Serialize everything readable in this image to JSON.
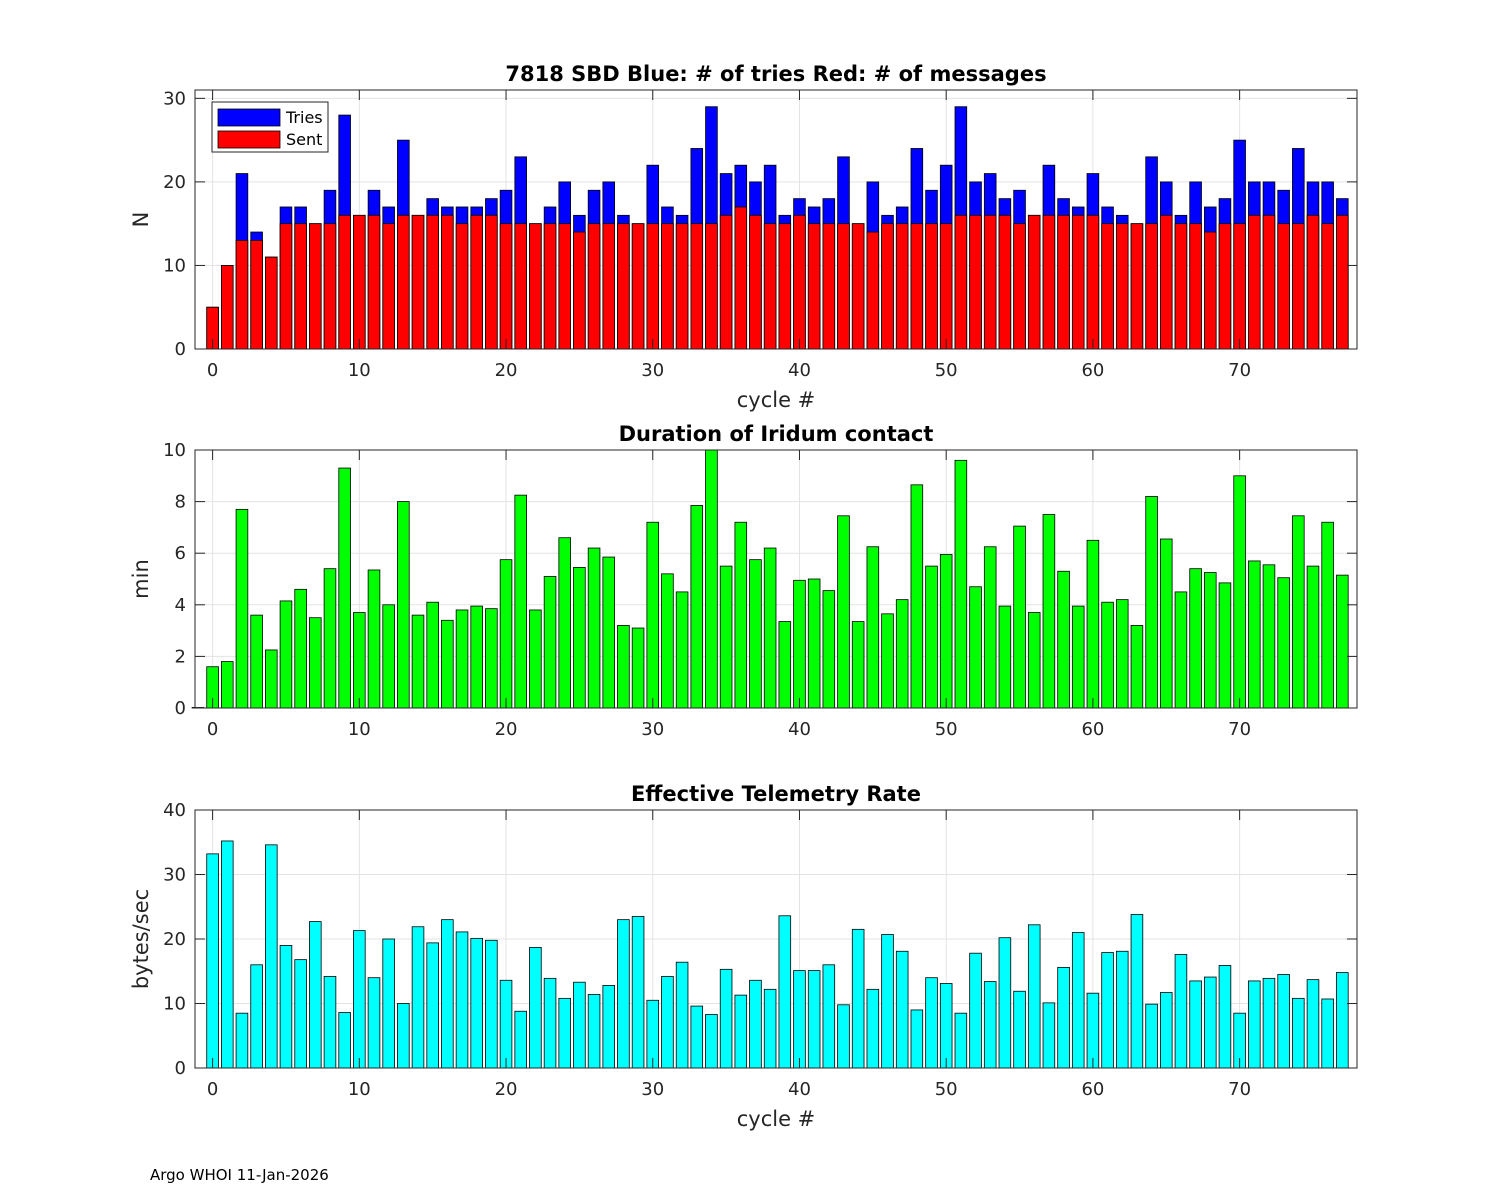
{
  "chart_data": [
    {
      "id": "sbd",
      "type": "bar",
      "title": "7818 SBD  Blue: # of tries   Red: # of messages",
      "xlabel": "cycle #",
      "ylabel": "N",
      "xlim": [
        -1.2,
        78
      ],
      "ylim": [
        0,
        31
      ],
      "xticks": [
        0,
        10,
        20,
        30,
        40,
        50,
        60,
        70
      ],
      "yticks": [
        0,
        10,
        20,
        30
      ],
      "grid": true,
      "legend_position": "top-left",
      "series": [
        {
          "name": "Tries",
          "color": "#0000ff",
          "x": [
            0,
            1,
            2,
            3,
            4,
            5,
            6,
            7,
            8,
            9,
            10,
            11,
            12,
            13,
            14,
            15,
            16,
            17,
            18,
            19,
            20,
            21,
            22,
            23,
            24,
            25,
            26,
            27,
            28,
            29,
            30,
            31,
            32,
            33,
            34,
            35,
            36,
            37,
            38,
            39,
            40,
            41,
            42,
            43,
            44,
            45,
            46,
            47,
            48,
            49,
            50,
            51,
            52,
            53,
            54,
            55,
            56,
            57,
            58,
            59,
            60,
            61,
            62,
            63,
            64,
            65,
            66,
            67,
            68,
            69,
            70,
            71,
            72,
            73,
            74,
            75,
            76,
            77
          ],
          "values": [
            5,
            10,
            21,
            14,
            11,
            17,
            17,
            15,
            19,
            28,
            16,
            19,
            17,
            25,
            16,
            18,
            17,
            17,
            17,
            18,
            19,
            23,
            15,
            17,
            20,
            16,
            19,
            20,
            16,
            15,
            22,
            17,
            16,
            24,
            29,
            21,
            22,
            20,
            22,
            16,
            18,
            17,
            18,
            23,
            15,
            20,
            16,
            17,
            24,
            19,
            22,
            29,
            20,
            21,
            18,
            19,
            16,
            22,
            18,
            17,
            21,
            17,
            16,
            15,
            23,
            20,
            16,
            20,
            17,
            18,
            25,
            20,
            20,
            19,
            24,
            20,
            20,
            18
          ]
        },
        {
          "name": "Sent",
          "color": "#ff0000",
          "x": [
            0,
            1,
            2,
            3,
            4,
            5,
            6,
            7,
            8,
            9,
            10,
            11,
            12,
            13,
            14,
            15,
            16,
            17,
            18,
            19,
            20,
            21,
            22,
            23,
            24,
            25,
            26,
            27,
            28,
            29,
            30,
            31,
            32,
            33,
            34,
            35,
            36,
            37,
            38,
            39,
            40,
            41,
            42,
            43,
            44,
            45,
            46,
            47,
            48,
            49,
            50,
            51,
            52,
            53,
            54,
            55,
            56,
            57,
            58,
            59,
            60,
            61,
            62,
            63,
            64,
            65,
            66,
            67,
            68,
            69,
            70,
            71,
            72,
            73,
            74,
            75,
            76,
            77
          ],
          "values": [
            5,
            10,
            13,
            13,
            11,
            15,
            15,
            15,
            15,
            16,
            16,
            16,
            15,
            16,
            16,
            16,
            16,
            15,
            16,
            16,
            15,
            15,
            15,
            15,
            15,
            14,
            15,
            15,
            15,
            15,
            15,
            15,
            15,
            15,
            15,
            16,
            17,
            16,
            15,
            15,
            16,
            15,
            15,
            15,
            15,
            14,
            15,
            15,
            15,
            15,
            15,
            16,
            16,
            16,
            16,
            15,
            16,
            16,
            16,
            16,
            16,
            15,
            15,
            15,
            15,
            16,
            15,
            15,
            14,
            15,
            15,
            16,
            16,
            15,
            15,
            16,
            15,
            16
          ]
        }
      ]
    },
    {
      "id": "duration",
      "type": "bar",
      "title": "Duration of Iridum contact",
      "xlabel": "",
      "ylabel": "min",
      "xlim": [
        -1.2,
        78
      ],
      "ylim": [
        0,
        10
      ],
      "xticks": [
        0,
        10,
        20,
        30,
        40,
        50,
        60,
        70
      ],
      "yticks": [
        0,
        2,
        4,
        6,
        8,
        10
      ],
      "grid": true,
      "series": [
        {
          "name": "Duration",
          "color": "#00ff00",
          "x": [
            -1,
            0,
            1,
            2,
            3,
            4,
            5,
            6,
            7,
            8,
            9,
            10,
            11,
            12,
            13,
            14,
            15,
            16,
            17,
            18,
            19,
            20,
            21,
            22,
            23,
            24,
            25,
            26,
            27,
            28,
            29,
            30,
            31,
            32,
            33,
            34,
            35,
            36,
            37,
            38,
            39,
            40,
            41,
            42,
            43,
            44,
            45,
            46,
            47,
            48,
            49,
            50,
            51,
            52,
            53,
            54,
            55,
            56,
            57,
            58,
            59,
            60,
            61,
            62,
            63,
            64,
            65,
            66,
            67,
            68,
            69,
            70,
            71,
            72,
            73,
            74,
            75,
            76,
            77
          ],
          "values": [
            0.02,
            1.6,
            1.8,
            7.7,
            3.6,
            2.25,
            4.15,
            4.6,
            3.5,
            5.4,
            9.3,
            3.7,
            5.35,
            4.0,
            8.0,
            3.6,
            4.1,
            3.4,
            3.8,
            3.95,
            3.85,
            5.75,
            8.25,
            3.8,
            5.1,
            6.6,
            5.45,
            6.2,
            5.85,
            3.2,
            3.1,
            7.2,
            5.2,
            4.5,
            7.85,
            10.0,
            5.5,
            7.2,
            5.75,
            6.2,
            3.35,
            4.95,
            5.0,
            4.55,
            7.45,
            3.35,
            6.25,
            3.65,
            4.2,
            8.65,
            5.5,
            5.95,
            9.6,
            4.7,
            6.25,
            3.95,
            7.05,
            3.7,
            7.5,
            5.3,
            3.95,
            6.5,
            4.1,
            4.2,
            3.2,
            8.2,
            6.55,
            4.5,
            5.4,
            5.25,
            4.85,
            9.0,
            5.7,
            5.55,
            5.05,
            7.45,
            5.5,
            7.2,
            5.15
          ]
        }
      ]
    },
    {
      "id": "rate",
      "type": "bar",
      "title": "Effective Telemetry Rate",
      "xlabel": "cycle #",
      "ylabel": "bytes/sec",
      "xlim": [
        -1.2,
        78
      ],
      "ylim": [
        0,
        40
      ],
      "xticks": [
        0,
        10,
        20,
        30,
        40,
        50,
        60,
        70
      ],
      "yticks": [
        0,
        10,
        20,
        30,
        40
      ],
      "grid": true,
      "series": [
        {
          "name": "Rate",
          "color": "#00ffff",
          "x": [
            0,
            1,
            2,
            3,
            4,
            5,
            6,
            7,
            8,
            9,
            10,
            11,
            12,
            13,
            14,
            15,
            16,
            17,
            18,
            19,
            20,
            21,
            22,
            23,
            24,
            25,
            26,
            27,
            28,
            29,
            30,
            31,
            32,
            33,
            34,
            35,
            36,
            37,
            38,
            39,
            40,
            41,
            42,
            43,
            44,
            45,
            46,
            47,
            48,
            49,
            50,
            51,
            52,
            53,
            54,
            55,
            56,
            57,
            58,
            59,
            60,
            61,
            62,
            63,
            64,
            65,
            66,
            67,
            68,
            69,
            70,
            71,
            72,
            73,
            74,
            75,
            76,
            77
          ],
          "values": [
            33.2,
            35.2,
            8.5,
            16.0,
            34.6,
            19.0,
            16.8,
            22.7,
            14.2,
            8.6,
            21.3,
            14.0,
            20.0,
            10.0,
            21.9,
            19.4,
            23.0,
            21.1,
            20.1,
            19.8,
            13.6,
            8.8,
            18.7,
            13.9,
            10.8,
            13.3,
            11.4,
            12.8,
            23.0,
            23.5,
            10.5,
            14.2,
            16.4,
            9.6,
            8.3,
            15.3,
            11.3,
            13.6,
            12.2,
            23.6,
            15.1,
            15.1,
            16.0,
            9.8,
            21.5,
            12.2,
            20.7,
            18.1,
            9.0,
            14.0,
            13.1,
            8.5,
            17.8,
            13.4,
            20.2,
            11.9,
            22.2,
            10.1,
            15.6,
            21.0,
            11.6,
            17.9,
            18.1,
            23.8,
            9.9,
            11.7,
            17.6,
            13.5,
            14.1,
            15.9,
            8.5,
            13.5,
            13.9,
            14.5,
            10.8,
            13.7,
            10.7,
            14.8
          ]
        }
      ]
    }
  ],
  "footer": "Argo WHOI 11-Jan-2026"
}
